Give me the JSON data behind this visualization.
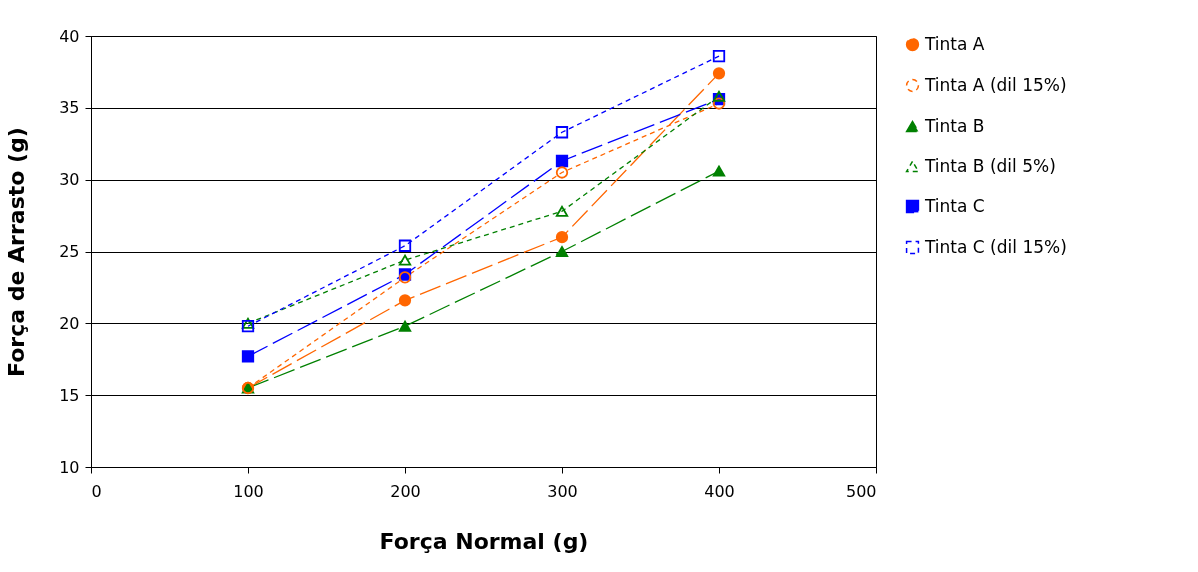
{
  "chart_data": {
    "type": "line",
    "xlabel": "Força Normal (g)",
    "ylabel": "Força de Arrasto (g)",
    "x": [
      100,
      200,
      300,
      400
    ],
    "series": [
      {
        "name": "Tinta A",
        "color": "#ff6600",
        "marker": "circle",
        "line_style": "dashed",
        "values": [
          15.5,
          21.6,
          26.0,
          37.4
        ]
      },
      {
        "name": "Tinta A (dil 15%)",
        "color": "#ff6600",
        "marker": "circle",
        "line_style": "dotted",
        "values": [
          15.5,
          23.2,
          30.5,
          35.3
        ]
      },
      {
        "name": "Tinta B",
        "color": "#008000",
        "marker": "triangle",
        "line_style": "dashed",
        "values": [
          15.5,
          19.8,
          25.0,
          30.6
        ]
      },
      {
        "name": "Tinta B (dil 5%)",
        "color": "#008000",
        "marker": "triangle",
        "line_style": "dotted",
        "values": [
          20.0,
          24.4,
          27.8,
          35.8
        ]
      },
      {
        "name": "Tinta C",
        "color": "#0000ff",
        "marker": "square",
        "line_style": "dashed",
        "values": [
          17.7,
          23.4,
          31.3,
          35.6
        ]
      },
      {
        "name": "Tinta C (dil 15%)",
        "color": "#0000ff",
        "marker": "square",
        "line_style": "dotted",
        "values": [
          19.8,
          25.4,
          33.3,
          38.6
        ]
      }
    ],
    "xlim": [
      0,
      500
    ],
    "xticks": [
      0,
      100,
      200,
      300,
      400,
      500
    ],
    "ylim": [
      10,
      40
    ],
    "yticks": [
      10,
      15,
      20,
      25,
      30,
      35,
      40
    ],
    "grid": "y",
    "legend": "right"
  }
}
